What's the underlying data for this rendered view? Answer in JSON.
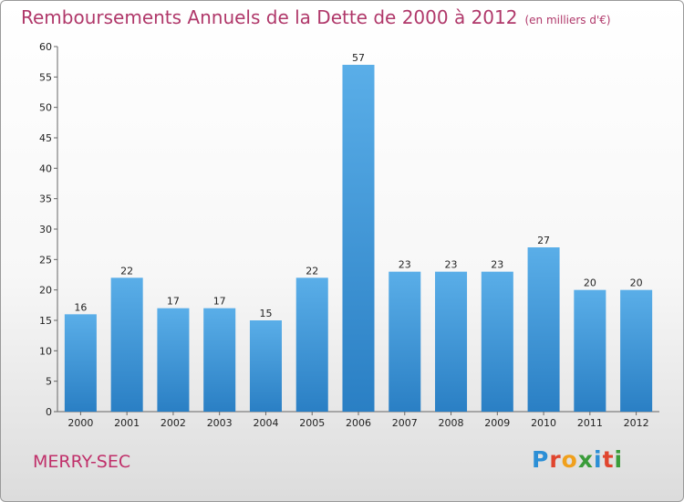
{
  "chart_data": {
    "type": "bar",
    "title": "Remboursements Annuels de la Dette de 2000 à 2012",
    "subtitle": "(en milliers d'€)",
    "categories": [
      "2000",
      "2001",
      "2002",
      "2003",
      "2004",
      "2005",
      "2006",
      "2007",
      "2008",
      "2009",
      "2010",
      "2011",
      "2012"
    ],
    "values": [
      16,
      22,
      17,
      17,
      15,
      22,
      57,
      23,
      23,
      23,
      27,
      20,
      20
    ],
    "ylim": [
      0,
      60
    ],
    "yticks": [
      0,
      5,
      10,
      15,
      20,
      25,
      30,
      35,
      40,
      45,
      50,
      55,
      60
    ],
    "grid": false,
    "bar_color_top": "#5aaee8",
    "bar_color_bottom": "#2a7fc4"
  },
  "footer": {
    "commune": "MERRY-SEC",
    "logo_letters": [
      {
        "ch": "P",
        "color": "#2c8fd6"
      },
      {
        "ch": "r",
        "color": "#e0452e"
      },
      {
        "ch": "o",
        "color": "#f0a01c"
      },
      {
        "ch": "x",
        "color": "#3a9c3a"
      },
      {
        "ch": "i",
        "color": "#2c8fd6"
      },
      {
        "ch": "t",
        "color": "#e0452e"
      },
      {
        "ch": "i",
        "color": "#3a9c3a"
      }
    ]
  }
}
